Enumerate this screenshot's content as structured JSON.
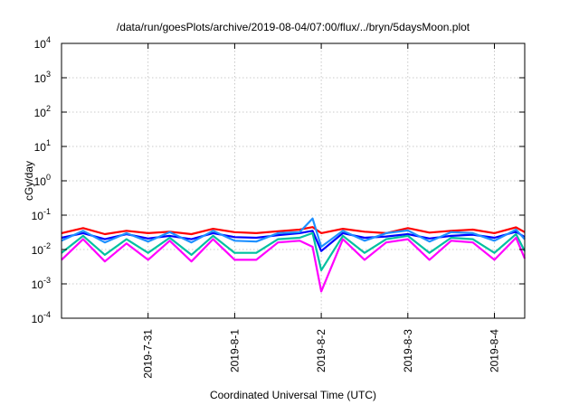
{
  "chart_data": {
    "type": "line",
    "title": "/data/run/goesPlots/archive/2019-08-04/07:00/flux/../bryn/5daysMoon.plot",
    "xlabel": "Coordinated Universal Time (UTC)",
    "ylabel": "cGy/day",
    "yscale": "log",
    "ylim": [
      0.0001,
      10000
    ],
    "y_ticks": [
      {
        "value": 0.0001,
        "base": "10",
        "exp": "-4"
      },
      {
        "value": 0.001,
        "base": "10",
        "exp": "-3"
      },
      {
        "value": 0.01,
        "base": "10",
        "exp": "-2"
      },
      {
        "value": 0.1,
        "base": "10",
        "exp": "-1"
      },
      {
        "value": 1,
        "base": "10",
        "exp": "0"
      },
      {
        "value": 10,
        "base": "10",
        "exp": "1"
      },
      {
        "value": 100,
        "base": "10",
        "exp": "2"
      },
      {
        "value": 1000,
        "base": "10",
        "exp": "3"
      },
      {
        "value": 10000,
        "base": "10",
        "exp": "4"
      }
    ],
    "xlim": [
      0,
      5.35
    ],
    "x_unit": "days after 2019-07-30 00:00 UTC",
    "x_ticks": [
      {
        "value": 1,
        "label": "2019-7-31"
      },
      {
        "value": 2,
        "label": "2019-8-1"
      },
      {
        "value": 3,
        "label": "2019-8-2"
      },
      {
        "value": 4,
        "label": "2019-8-3"
      },
      {
        "value": 5,
        "label": "2019-8-4"
      }
    ],
    "grid": true,
    "legend": "none",
    "series": [
      {
        "color": "#ff0000",
        "x": [
          0,
          0.25,
          0.5,
          0.75,
          1.0,
          1.25,
          1.5,
          1.75,
          2.0,
          2.25,
          2.5,
          2.75,
          2.9,
          3.0,
          3.25,
          3.5,
          3.75,
          4.0,
          4.25,
          4.5,
          4.75,
          5.0,
          5.25,
          5.35
        ],
        "y": [
          0.03,
          0.042,
          0.028,
          0.035,
          0.03,
          0.033,
          0.028,
          0.04,
          0.032,
          0.03,
          0.034,
          0.038,
          0.045,
          0.03,
          0.04,
          0.033,
          0.03,
          0.042,
          0.031,
          0.035,
          0.038,
          0.03,
          0.044,
          0.032
        ]
      },
      {
        "color": "#0000ff",
        "x": [
          0,
          0.25,
          0.5,
          0.75,
          1.0,
          1.25,
          1.5,
          1.75,
          2.0,
          2.25,
          2.5,
          2.75,
          2.9,
          3.0,
          3.25,
          3.5,
          3.75,
          4.0,
          4.25,
          4.5,
          4.75,
          5.0,
          5.25,
          5.35
        ],
        "y": [
          0.022,
          0.03,
          0.02,
          0.028,
          0.021,
          0.025,
          0.02,
          0.03,
          0.023,
          0.022,
          0.026,
          0.03,
          0.035,
          0.009,
          0.03,
          0.022,
          0.024,
          0.028,
          0.021,
          0.025,
          0.027,
          0.022,
          0.033,
          0.023
        ]
      },
      {
        "color": "#1e90ff",
        "x": [
          0,
          0.25,
          0.5,
          0.75,
          1.0,
          1.25,
          1.5,
          1.75,
          2.0,
          2.25,
          2.5,
          2.75,
          2.9,
          3.0,
          3.25,
          3.5,
          3.75,
          4.0,
          4.25,
          4.5,
          4.75,
          5.0,
          5.25,
          5.35
        ],
        "y": [
          0.018,
          0.035,
          0.016,
          0.03,
          0.017,
          0.032,
          0.016,
          0.035,
          0.018,
          0.017,
          0.03,
          0.032,
          0.08,
          0.012,
          0.035,
          0.018,
          0.03,
          0.036,
          0.017,
          0.032,
          0.03,
          0.018,
          0.038,
          0.02
        ]
      },
      {
        "color": "#00c0a0",
        "x": [
          0,
          0.25,
          0.5,
          0.75,
          1.0,
          1.25,
          1.5,
          1.75,
          2.0,
          2.25,
          2.5,
          2.75,
          2.9,
          3.0,
          3.25,
          3.5,
          3.75,
          4.0,
          4.25,
          4.5,
          4.75,
          5.0,
          5.25,
          5.35
        ],
        "y": [
          0.008,
          0.025,
          0.007,
          0.02,
          0.008,
          0.022,
          0.007,
          0.025,
          0.008,
          0.008,
          0.02,
          0.022,
          0.03,
          0.0025,
          0.025,
          0.008,
          0.02,
          0.025,
          0.008,
          0.022,
          0.02,
          0.008,
          0.028,
          0.009
        ]
      },
      {
        "color": "#ff00ff",
        "x": [
          0,
          0.25,
          0.5,
          0.75,
          1.0,
          1.25,
          1.5,
          1.75,
          2.0,
          2.25,
          2.5,
          2.75,
          2.9,
          3.0,
          3.25,
          3.5,
          3.75,
          4.0,
          4.25,
          4.5,
          4.75,
          5.0,
          5.25,
          5.35
        ],
        "y": [
          0.005,
          0.02,
          0.0045,
          0.015,
          0.005,
          0.018,
          0.0045,
          0.02,
          0.005,
          0.005,
          0.016,
          0.018,
          0.012,
          0.0006,
          0.02,
          0.005,
          0.016,
          0.02,
          0.005,
          0.018,
          0.016,
          0.005,
          0.022,
          0.0055
        ]
      }
    ]
  }
}
